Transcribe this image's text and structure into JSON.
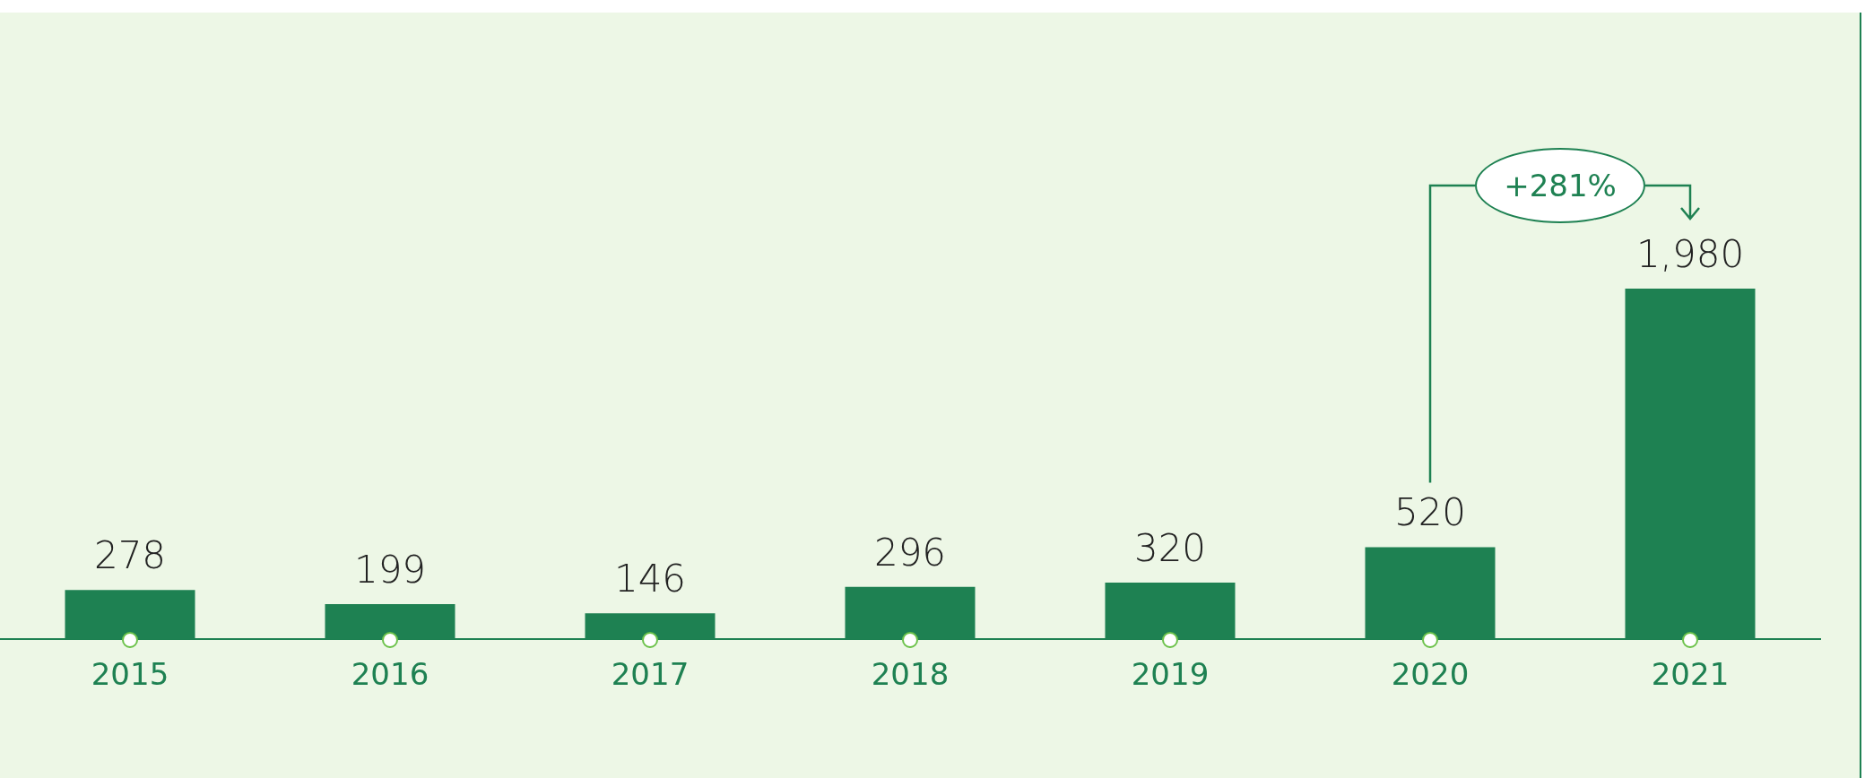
{
  "chart_data": {
    "type": "bar",
    "categories": [
      "2015",
      "2016",
      "2017",
      "2018",
      "2019",
      "2020",
      "2021"
    ],
    "values": [
      278,
      199,
      146,
      296,
      320,
      520,
      1980
    ],
    "color": "#1e8152",
    "value_labels": [
      "278",
      "199",
      "146",
      "296",
      "320",
      "520",
      "1,980"
    ],
    "grid": false,
    "legend": false,
    "tick_labels": "x",
    "annotations": [
      "+281%"
    ]
  }
}
